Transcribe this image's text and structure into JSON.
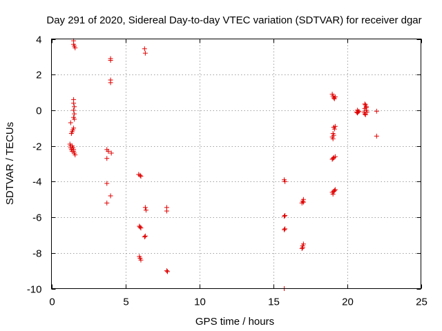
{
  "chart_data": {
    "type": "scatter",
    "title": "Day 291 of 2020, Sidereal Day-to-day VTEC variation (SDTVAR) for receiver dgar",
    "xlabel": "GPS time / hours",
    "ylabel": "SDTVAR / TECUs",
    "xlim": [
      0,
      25
    ],
    "ylim": [
      -10,
      4
    ],
    "x_ticks": [
      0,
      5,
      10,
      15,
      20,
      25
    ],
    "x_tick_labels": [
      "0",
      "5",
      "10",
      "15",
      "20",
      "25"
    ],
    "y_ticks": [
      -10,
      -8,
      -6,
      -4,
      -2,
      0,
      2,
      4
    ],
    "y_tick_labels": [
      "-10",
      "-8",
      "-6",
      "-4",
      "-2",
      "0",
      "2",
      "4"
    ],
    "grid": true,
    "marker": "plus",
    "color": "#e00000",
    "series": [
      {
        "name": "SDTVAR",
        "points": [
          [
            1.3,
            -0.7
          ],
          [
            1.25,
            -1.9
          ],
          [
            1.3,
            -2.0
          ],
          [
            1.3,
            -2.1
          ],
          [
            1.35,
            -2.2
          ],
          [
            1.4,
            -2.3
          ],
          [
            1.35,
            -1.3
          ],
          [
            1.4,
            -1.2
          ],
          [
            1.45,
            -1.1
          ],
          [
            1.5,
            -1.0
          ],
          [
            1.4,
            -2.0
          ],
          [
            1.45,
            -2.1
          ],
          [
            1.5,
            -2.3
          ],
          [
            1.55,
            -2.4
          ],
          [
            1.6,
            -2.5
          ],
          [
            1.5,
            -2.2
          ],
          [
            1.5,
            3.9
          ],
          [
            1.5,
            3.7
          ],
          [
            1.55,
            3.6
          ],
          [
            1.6,
            3.5
          ],
          [
            1.5,
            0.6
          ],
          [
            1.5,
            0.4
          ],
          [
            1.55,
            0.2
          ],
          [
            1.5,
            0.0
          ],
          [
            1.55,
            -0.2
          ],
          [
            1.5,
            -0.4
          ],
          [
            1.55,
            -0.5
          ],
          [
            3.75,
            -2.2
          ],
          [
            3.75,
            -2.7
          ],
          [
            3.85,
            -2.3
          ],
          [
            4.05,
            -2.4
          ],
          [
            3.75,
            -4.1
          ],
          [
            3.75,
            -5.2
          ],
          [
            4.0,
            -4.8
          ],
          [
            4.0,
            2.9
          ],
          [
            4.0,
            2.8
          ],
          [
            4.0,
            1.7
          ],
          [
            4.0,
            1.55
          ],
          [
            5.9,
            -3.6
          ],
          [
            6.05,
            -3.7
          ],
          [
            6.0,
            -3.65
          ],
          [
            5.95,
            -6.5
          ],
          [
            6.05,
            -6.6
          ],
          [
            6.0,
            -6.55
          ],
          [
            5.95,
            -8.2
          ],
          [
            6.0,
            -8.3
          ],
          [
            6.05,
            -8.4
          ],
          [
            6.3,
            3.45
          ],
          [
            6.35,
            3.2
          ],
          [
            6.35,
            -5.45
          ],
          [
            6.4,
            -5.6
          ],
          [
            6.3,
            -7.1
          ],
          [
            6.35,
            -7.05
          ],
          [
            7.8,
            -5.45
          ],
          [
            7.8,
            -5.65
          ],
          [
            7.8,
            -9.0
          ],
          [
            7.85,
            -9.05
          ],
          [
            15.75,
            -3.9
          ],
          [
            15.8,
            -4.0
          ],
          [
            15.75,
            -5.95
          ],
          [
            15.8,
            -5.9
          ],
          [
            15.75,
            -6.7
          ],
          [
            15.8,
            -6.65
          ],
          [
            15.75,
            -10.0
          ],
          [
            16.95,
            -5.2
          ],
          [
            17.0,
            -5.1
          ],
          [
            17.05,
            -5.0
          ],
          [
            17.05,
            -5.15
          ],
          [
            16.95,
            -7.75
          ],
          [
            17.0,
            -7.6
          ],
          [
            17.05,
            -7.5
          ],
          [
            17.0,
            -7.7
          ],
          [
            19.0,
            0.9
          ],
          [
            19.05,
            0.8
          ],
          [
            19.1,
            0.7
          ],
          [
            19.2,
            0.75
          ],
          [
            19.15,
            0.65
          ],
          [
            19.1,
            -0.95
          ],
          [
            19.15,
            -1.05
          ],
          [
            19.2,
            -0.9
          ],
          [
            19.0,
            -1.5
          ],
          [
            19.05,
            -1.6
          ],
          [
            19.1,
            -1.4
          ],
          [
            19.05,
            -1.3
          ],
          [
            19.0,
            -2.75
          ],
          [
            19.05,
            -2.7
          ],
          [
            19.1,
            -2.65
          ],
          [
            19.2,
            -2.6
          ],
          [
            19.0,
            -4.6
          ],
          [
            19.05,
            -4.7
          ],
          [
            19.1,
            -4.55
          ],
          [
            19.15,
            -4.5
          ],
          [
            19.2,
            -4.45
          ],
          [
            20.65,
            -0.1
          ],
          [
            20.7,
            0.0
          ],
          [
            20.75,
            -0.1
          ],
          [
            20.8,
            -0.05
          ],
          [
            20.7,
            -0.15
          ],
          [
            21.15,
            -0.1
          ],
          [
            21.2,
            0.1
          ],
          [
            21.25,
            0.3
          ],
          [
            21.3,
            0.2
          ],
          [
            21.2,
            -0.2
          ],
          [
            21.25,
            -0.25
          ],
          [
            21.3,
            0.0
          ],
          [
            21.35,
            -0.1
          ],
          [
            21.2,
            0.35
          ],
          [
            21.3,
            0.15
          ],
          [
            22.0,
            -0.05
          ],
          [
            22.0,
            -1.45
          ]
        ]
      }
    ]
  }
}
